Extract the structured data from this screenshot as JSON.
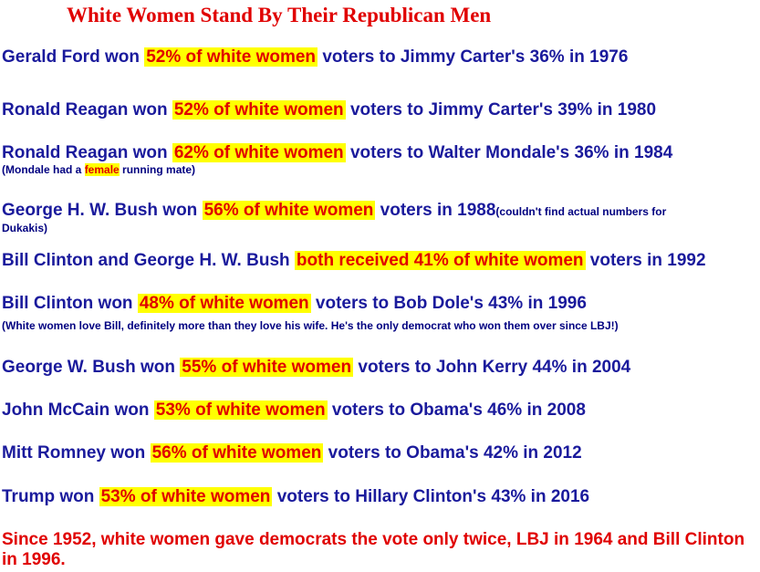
{
  "title": "White Women Stand By Their Republican Men",
  "colors": {
    "text": "#1a1a9c",
    "highlight_text": "#e00000",
    "highlight_bg": "#ffff00",
    "note": "#000080",
    "title": "#e00000"
  },
  "lines": [
    {
      "pre": "Gerald Ford won ",
      "hl": "52% of white women",
      "post": " voters to Jimmy Carter's 36% in 1976"
    },
    {
      "pre": "Ronald Reagan won ",
      "hl": "52% of white women",
      "post": " voters to Jimmy Carter's 39% in 1980"
    },
    {
      "pre": "Ronald Reagan won ",
      "hl": "62% of white women",
      "post": " voters to Walter Mondale's 36% in 1984",
      "note_pre": "(Mondale had a ",
      "note_hl": "female",
      "note_post": " running mate)"
    },
    {
      "pre": "George H. W. Bush won ",
      "hl": "56% of white women",
      "post": " voters in 1988",
      "note_inline": "(couldn't find actual numbers for",
      "note_cont": "Dukakis)"
    },
    {
      "pre": "Bill Clinton and George H. W. Bush ",
      "hl": "both received 41% of white women",
      "post": " voters in 1992"
    },
    {
      "pre": "Bill Clinton won ",
      "hl": "48% of white women",
      "post": " voters to Bob Dole's 43% in 1996",
      "note": "(White women love Bill, definitely more than they love his wife.  He's the only democrat who won them over since LBJ!)"
    },
    {
      "pre": "George W. Bush won ",
      "hl": "55% of white women",
      "post": " voters to John Kerry 44% in 2004"
    },
    {
      "pre": "John McCain won ",
      "hl": "53% of white women",
      "post": " voters to Obama's 46%  in 2008"
    },
    {
      "pre": "Mitt Romney won ",
      "hl": "56% of white women",
      "post": " voters to Obama's 42% in 2012"
    },
    {
      "pre": "Trump won ",
      "hl": "53% of white women",
      "post": " voters to Hillary Clinton's 43% in 2016"
    }
  ],
  "footer": "Since 1952, white women gave democrats the vote only twice, LBJ in 1964 and Bill Clinton in 1996."
}
